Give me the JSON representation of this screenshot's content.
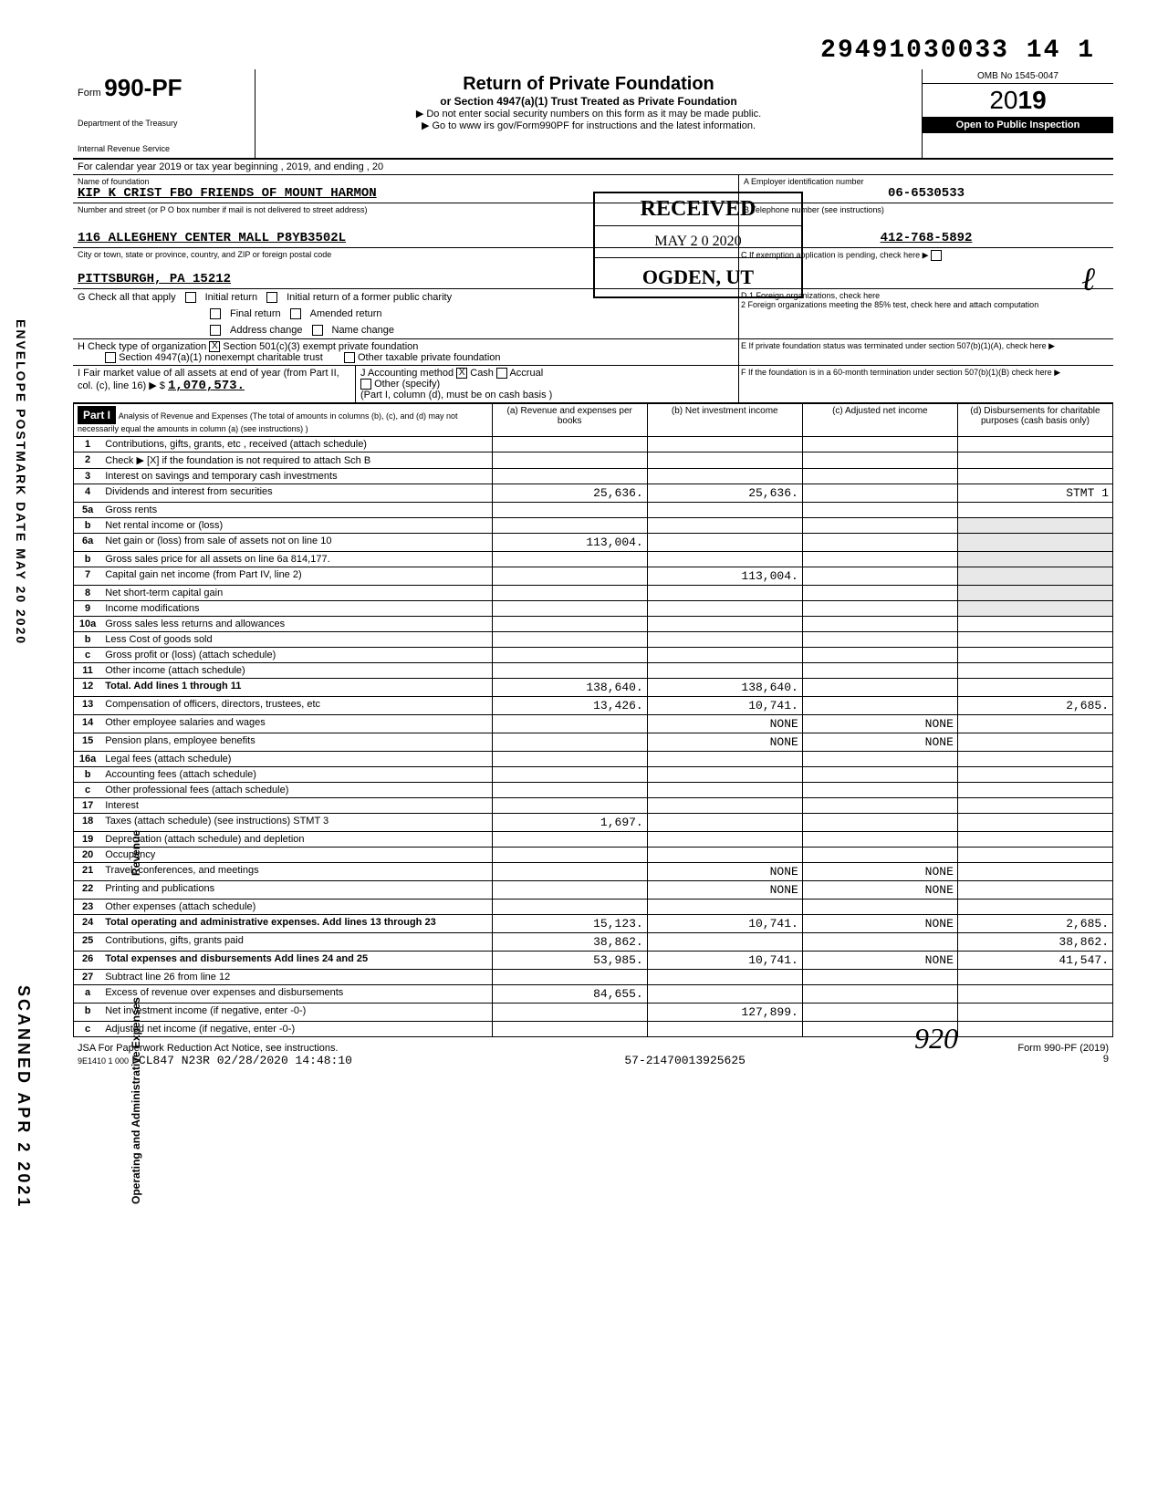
{
  "top_number": "29491030033 14 1",
  "header": {
    "form_word": "Form",
    "form_no": "990-PF",
    "dept1": "Department of the Treasury",
    "dept2": "Internal Revenue Service",
    "title": "Return of Private Foundation",
    "sub": "or Section 4947(a)(1) Trust Treated as Private Foundation",
    "note1": "▶ Do not enter social security numbers on this form as it may be made public.",
    "note2": "▶ Go to www irs gov/Form990PF for instructions and the latest information.",
    "omb": "OMB No 1545-0047",
    "year_prefix": "2",
    "year_bold": "19",
    "year_suffix": "",
    "year_display": "2019",
    "inspection": "Open to Public Inspection"
  },
  "calendar": "For calendar year 2019 or tax year beginning                                    , 2019, and ending                                    , 20",
  "foundation": {
    "name_label": "Name of foundation",
    "name": "KIP K CRIST FBO FRIENDS OF MOUNT HARMON",
    "addr_label": "Number and street (or P O  box number if mail is not delivered to street address)",
    "address": "116 ALLEGHENY CENTER MALL P8YB3502L",
    "room_label": "Room/suite",
    "city_label": "City or town, state or province, country, and ZIP or foreign postal code",
    "city": "PITTSBURGH, PA 15212",
    "ein_label": "A  Employer identification number",
    "ein": "06-6530533",
    "phone_label": "B  Telephone number (see instructions)",
    "phone": "412-768-5892",
    "exemption_label": "C  If exemption application is pending, check here"
  },
  "stamp": {
    "title": "RECEIVED",
    "date": "MAY 2 0 2020",
    "loc": "OGDEN, UT"
  },
  "checks": {
    "g_label": "G  Check all that apply",
    "initial": "Initial return",
    "initial_former": "Initial return of a former public charity",
    "final": "Final return",
    "amended": "Amended return",
    "addr_change": "Address change",
    "name_change": "Name change",
    "h_label": "H  Check type of organization",
    "h_501c3": "Section 501(c)(3) exempt private foundation",
    "h_4947": "Section 4947(a)(1) nonexempt charitable trust",
    "h_other": "Other taxable private foundation",
    "i_label": "I   Fair  market  value  of  all  assets  at end  of  year  (from Part II, col. (c), line 16) ▶ $",
    "i_value": "1,070,573.",
    "j_label": "J Accounting method",
    "j_cash": "Cash",
    "j_accrual": "Accrual",
    "j_other": "Other (specify)",
    "j_note": "(Part I, column (d), must be on cash basis )",
    "d1": "D  1  Foreign organizations, check here",
    "d2": "2  Foreign organizations meeting the 85% test, check here and attach computation",
    "e": "E   If private foundation status was terminated under section 507(b)(1)(A), check here",
    "f": "F   If the foundation is in a 60-month termination under section 507(b)(1)(B) check here"
  },
  "part1": {
    "title": "Part I",
    "desc": "Analysis of Revenue and Expenses (The total of amounts in columns (b), (c), and (d) may not necessarily equal the amounts in column (a) (see instructions) )",
    "col_a": "(a) Revenue and expenses per books",
    "col_b": "(b) Net investment income",
    "col_c": "(c) Adjusted net income",
    "col_d": "(d) Disbursements for charitable purposes (cash basis only)"
  },
  "rows": [
    {
      "n": "1",
      "label": "Contributions, gifts, grants, etc , received (attach schedule)",
      "a": "",
      "b": "",
      "c": "",
      "d": ""
    },
    {
      "n": "2",
      "label": "Check ▶ [X] if the foundation is not required to attach Sch B",
      "a": "",
      "b": "",
      "c": "",
      "d": ""
    },
    {
      "n": "3",
      "label": "Interest on savings and temporary cash investments",
      "a": "",
      "b": "",
      "c": "",
      "d": ""
    },
    {
      "n": "4",
      "label": "Dividends and interest from securities",
      "a": "25,636.",
      "b": "25,636.",
      "c": "",
      "d": "STMT 1"
    },
    {
      "n": "5a",
      "label": "Gross rents",
      "a": "",
      "b": "",
      "c": "",
      "d": ""
    },
    {
      "n": "b",
      "label": "Net rental income or (loss)",
      "a": "",
      "b": "",
      "c": "",
      "d": ""
    },
    {
      "n": "6a",
      "label": "Net gain or (loss) from sale of assets not on line 10",
      "a": "113,004.",
      "b": "",
      "c": "",
      "d": ""
    },
    {
      "n": "b",
      "label": "Gross sales price for all assets on line 6a       814,177.",
      "a": "",
      "b": "",
      "c": "",
      "d": ""
    },
    {
      "n": "7",
      "label": "Capital gain net income (from Part IV, line 2)",
      "a": "",
      "b": "113,004.",
      "c": "",
      "d": ""
    },
    {
      "n": "8",
      "label": "Net short-term capital gain",
      "a": "",
      "b": "",
      "c": "",
      "d": ""
    },
    {
      "n": "9",
      "label": "Income modifications",
      "a": "",
      "b": "",
      "c": "",
      "d": ""
    },
    {
      "n": "10a",
      "label": "Gross sales less returns and allowances",
      "a": "",
      "b": "",
      "c": "",
      "d": ""
    },
    {
      "n": "b",
      "label": "Less Cost of goods sold",
      "a": "",
      "b": "",
      "c": "",
      "d": ""
    },
    {
      "n": "c",
      "label": "Gross profit or (loss) (attach schedule)",
      "a": "",
      "b": "",
      "c": "",
      "d": ""
    },
    {
      "n": "11",
      "label": "Other income (attach schedule)",
      "a": "",
      "b": "",
      "c": "",
      "d": ""
    },
    {
      "n": "12",
      "label": "Total. Add lines 1 through 11",
      "a": "138,640.",
      "b": "138,640.",
      "c": "",
      "d": ""
    },
    {
      "n": "13",
      "label": "Compensation of officers, directors, trustees, etc",
      "a": "13,426.",
      "b": "10,741.",
      "c": "",
      "d": "2,685."
    },
    {
      "n": "14",
      "label": "Other employee salaries and wages",
      "a": "",
      "b": "NONE",
      "c": "NONE",
      "d": ""
    },
    {
      "n": "15",
      "label": "Pension plans, employee benefits",
      "a": "",
      "b": "NONE",
      "c": "NONE",
      "d": ""
    },
    {
      "n": "16a",
      "label": "Legal fees (attach schedule)",
      "a": "",
      "b": "",
      "c": "",
      "d": ""
    },
    {
      "n": "b",
      "label": "Accounting fees (attach schedule)",
      "a": "",
      "b": "",
      "c": "",
      "d": ""
    },
    {
      "n": "c",
      "label": "Other professional fees (attach schedule)",
      "a": "",
      "b": "",
      "c": "",
      "d": ""
    },
    {
      "n": "17",
      "label": "Interest",
      "a": "",
      "b": "",
      "c": "",
      "d": ""
    },
    {
      "n": "18",
      "label": "Taxes (attach schedule) (see instructions) STMT 3",
      "a": "1,697.",
      "b": "",
      "c": "",
      "d": ""
    },
    {
      "n": "19",
      "label": "Depreciation (attach schedule) and depletion",
      "a": "",
      "b": "",
      "c": "",
      "d": ""
    },
    {
      "n": "20",
      "label": "Occupancy",
      "a": "",
      "b": "",
      "c": "",
      "d": ""
    },
    {
      "n": "21",
      "label": "Travel, conferences, and meetings",
      "a": "",
      "b": "NONE",
      "c": "NONE",
      "d": ""
    },
    {
      "n": "22",
      "label": "Printing and publications",
      "a": "",
      "b": "NONE",
      "c": "NONE",
      "d": ""
    },
    {
      "n": "23",
      "label": "Other expenses (attach schedule)",
      "a": "",
      "b": "",
      "c": "",
      "d": ""
    },
    {
      "n": "24",
      "label": "Total operating and administrative expenses. Add lines 13 through 23",
      "a": "15,123.",
      "b": "10,741.",
      "c": "NONE",
      "d": "2,685."
    },
    {
      "n": "25",
      "label": "Contributions, gifts, grants paid",
      "a": "38,862.",
      "b": "",
      "c": "",
      "d": "38,862."
    },
    {
      "n": "26",
      "label": "Total expenses and disbursements  Add lines 24 and 25",
      "a": "53,985.",
      "b": "10,741.",
      "c": "NONE",
      "d": "41,547."
    },
    {
      "n": "27",
      "label": "Subtract line 26 from line 12",
      "a": "",
      "b": "",
      "c": "",
      "d": ""
    },
    {
      "n": "a",
      "label": "Excess  of revenue over  expenses and disbursements",
      "a": "84,655.",
      "b": "",
      "c": "",
      "d": ""
    },
    {
      "n": "b",
      "label": "Net investment income (if negative, enter -0-)",
      "a": "",
      "b": "127,899.",
      "c": "",
      "d": ""
    },
    {
      "n": "c",
      "label": "Adjusted net income (if negative, enter -0-)",
      "a": "",
      "b": "",
      "c": "",
      "d": ""
    }
  ],
  "footer": {
    "paperwork": "JSA For Paperwork Reduction Act Notice, see instructions.",
    "code": "9E1410 1 000",
    "bottom_line": "FCL847 N23R 02/28/2020 14:48:10",
    "mid": "57-21470013925625",
    "form": "Form 990-PF (2019)",
    "page": "9"
  },
  "side": {
    "revenue": "Revenue",
    "expenses": "Operating and Administrative Expenses",
    "envelope": "ENVELOPE POSTMARK DATE MAY 20 2020",
    "scanned": "SCANNED APR 2 2021"
  },
  "sig": "920",
  "initials": "ℓ"
}
